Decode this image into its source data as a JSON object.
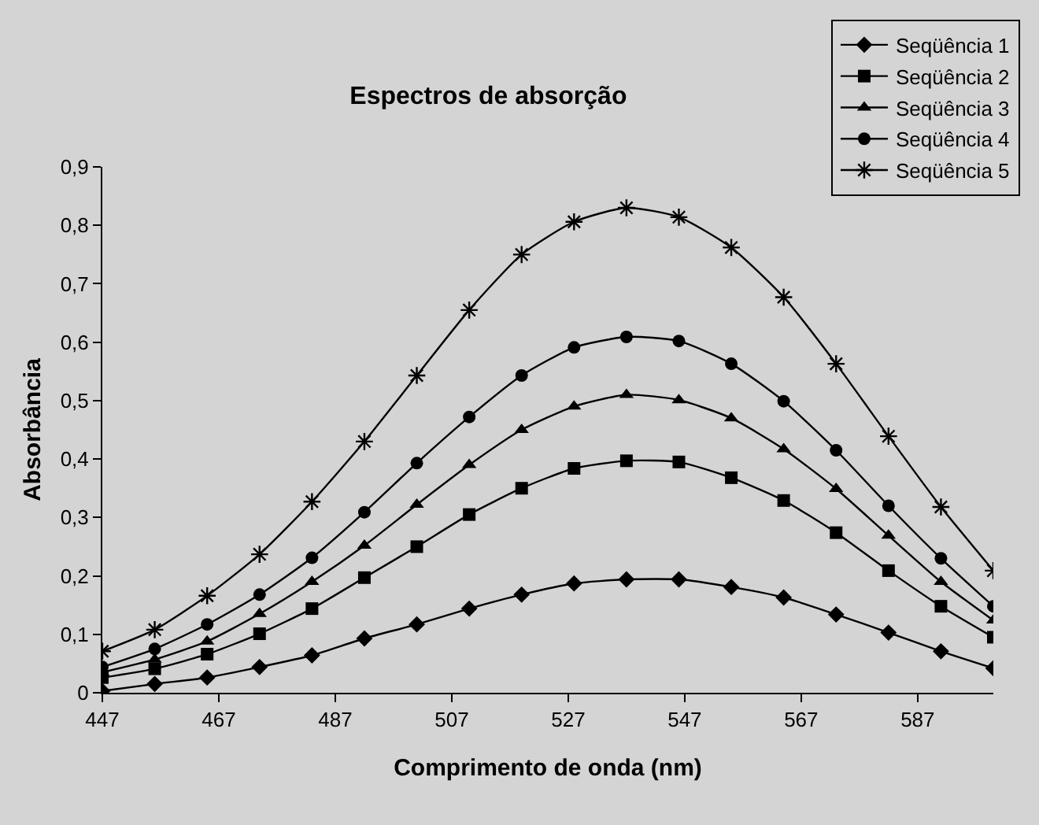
{
  "chart_data": {
    "type": "line",
    "title": "Espectros de absorção",
    "xlabel": "Comprimento de onda (nm)",
    "ylabel": "Absorbância",
    "x": [
      447,
      456,
      465,
      474,
      483,
      492,
      501,
      510,
      519,
      528,
      537,
      546,
      555,
      564,
      573,
      582,
      591,
      600
    ],
    "series": [
      {
        "name": "Seqüência 1",
        "color": "#000000",
        "marker": "diamond",
        "values": [
          0.003,
          0.015,
          0.026,
          0.044,
          0.064,
          0.093,
          0.117,
          0.144,
          0.168,
          0.187,
          0.194,
          0.194,
          0.181,
          0.163,
          0.134,
          0.103,
          0.071,
          0.042
        ]
      },
      {
        "name": "Seqüência 2",
        "color": "#000000",
        "marker": "square",
        "values": [
          0.026,
          0.041,
          0.066,
          0.101,
          0.144,
          0.197,
          0.25,
          0.305,
          0.35,
          0.384,
          0.397,
          0.395,
          0.368,
          0.329,
          0.274,
          0.209,
          0.148,
          0.095
        ]
      },
      {
        "name": "Seqüência 3",
        "color": "#000000",
        "marker": "triangle",
        "values": [
          0.035,
          0.057,
          0.088,
          0.135,
          0.19,
          0.252,
          0.322,
          0.39,
          0.45,
          0.49,
          0.51,
          0.501,
          0.47,
          0.417,
          0.349,
          0.269,
          0.19,
          0.124
        ]
      },
      {
        "name": "Seqüência 4",
        "color": "#000000",
        "marker": "circle",
        "values": [
          0.044,
          0.075,
          0.117,
          0.168,
          0.231,
          0.309,
          0.393,
          0.472,
          0.543,
          0.591,
          0.609,
          0.602,
          0.563,
          0.499,
          0.415,
          0.32,
          0.23,
          0.148
        ]
      },
      {
        "name": "Seqüência 5",
        "color": "#000000",
        "marker": "cross",
        "values": [
          0.071,
          0.108,
          0.166,
          0.237,
          0.327,
          0.43,
          0.543,
          0.655,
          0.75,
          0.806,
          0.83,
          0.814,
          0.762,
          0.677,
          0.563,
          0.439,
          0.318,
          0.209
        ]
      }
    ],
    "xlim": [
      447,
      600
    ],
    "xticks": [
      447,
      467,
      487,
      507,
      527,
      547,
      567,
      587
    ],
    "ylim": [
      0,
      0.9
    ],
    "yticks": [
      {
        "value": 0,
        "label": "0"
      },
      {
        "value": 0.1,
        "label": "0,1"
      },
      {
        "value": 0.2,
        "label": "0,2"
      },
      {
        "value": 0.3,
        "label": "0,3"
      },
      {
        "value": 0.4,
        "label": "0,4"
      },
      {
        "value": 0.5,
        "label": "0,5"
      },
      {
        "value": 0.6,
        "label": "0,6"
      },
      {
        "value": 0.7,
        "label": "0,7"
      },
      {
        "value": 0.8,
        "label": "0,8"
      },
      {
        "value": 0.9,
        "label": "0,9"
      }
    ],
    "grid": false,
    "legend": "top right",
    "line_style": "solid"
  }
}
